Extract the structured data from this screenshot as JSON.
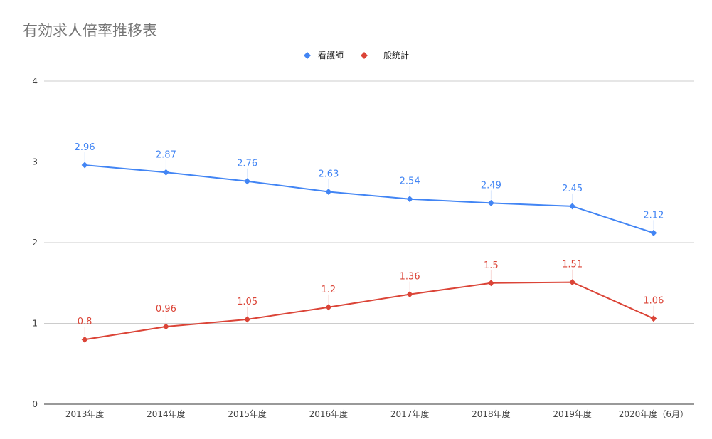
{
  "chart_data": {
    "type": "line",
    "title": "有効求人倍率推移表",
    "xlabel": "",
    "ylabel": "",
    "ylim": [
      0,
      4
    ],
    "yticks": [
      0,
      1,
      2,
      3,
      4
    ],
    "grid": true,
    "legend_position": "top-center",
    "categories": [
      "2013年度",
      "2014年度",
      "2015年度",
      "2016年度",
      "2017年度",
      "2018年度",
      "2019年度",
      "2020年度（6月）"
    ],
    "series": [
      {
        "name": "看護師",
        "color": "#4285f4",
        "values": [
          2.96,
          2.87,
          2.76,
          2.63,
          2.54,
          2.49,
          2.45,
          2.12
        ],
        "labels": [
          "2.96",
          "2.87",
          "2.76",
          "2.63",
          "2.54",
          "2.49",
          "2.45",
          "2.12"
        ]
      },
      {
        "name": "一般統計",
        "color": "#db4437",
        "values": [
          0.8,
          0.96,
          1.05,
          1.2,
          1.36,
          1.5,
          1.51,
          1.06
        ],
        "labels": [
          "0.8",
          "0.96",
          "1.05",
          "1.2",
          "1.36",
          "1.5",
          "1.51",
          "1.06"
        ]
      }
    ]
  }
}
